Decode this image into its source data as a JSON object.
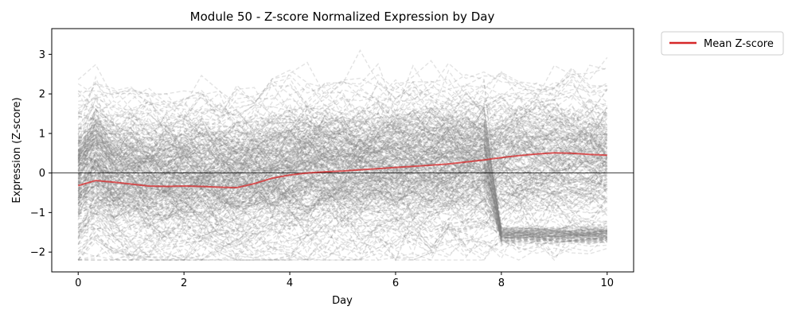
{
  "chart_data": {
    "type": "line",
    "title": "Module 50 - Z-score Normalized Expression by Day",
    "xlabel": "Day",
    "ylabel": "Expression (Z-score)",
    "xlim": [
      -0.5,
      10.5
    ],
    "ylim": [
      -2.5,
      3.65
    ],
    "xticks": [
      0,
      2,
      4,
      6,
      8,
      10
    ],
    "yticks": [
      -2,
      -1,
      0,
      1,
      2,
      3
    ],
    "x": [
      0,
      0.33,
      0.67,
      1,
      1.33,
      1.67,
      2,
      2.33,
      2.67,
      3,
      3.33,
      3.67,
      4,
      4.33,
      4.67,
      5,
      5.33,
      5.67,
      6,
      6.33,
      6.67,
      7,
      7.33,
      7.67,
      8,
      8.33,
      8.67,
      9,
      9.33,
      9.67,
      10
    ],
    "series": [
      {
        "name": "Mean Z-score",
        "color": "#d62728",
        "values": [
          -0.32,
          -0.19,
          -0.23,
          -0.28,
          -0.33,
          -0.34,
          -0.33,
          -0.34,
          -0.36,
          -0.37,
          -0.27,
          -0.13,
          -0.05,
          0.0,
          0.03,
          0.05,
          0.08,
          0.11,
          0.14,
          0.17,
          0.2,
          0.23,
          0.28,
          0.33,
          0.39,
          0.44,
          0.48,
          0.51,
          0.5,
          0.47,
          0.45
        ]
      }
    ],
    "background_lines": {
      "color": "#808080",
      "style": "dashed",
      "count_approx": 300
    },
    "reference_line": {
      "y": 0,
      "color": "#000000"
    },
    "legend": {
      "placement": "outside-top-right",
      "entries": [
        "Mean Z-score"
      ]
    },
    "grid": false
  }
}
